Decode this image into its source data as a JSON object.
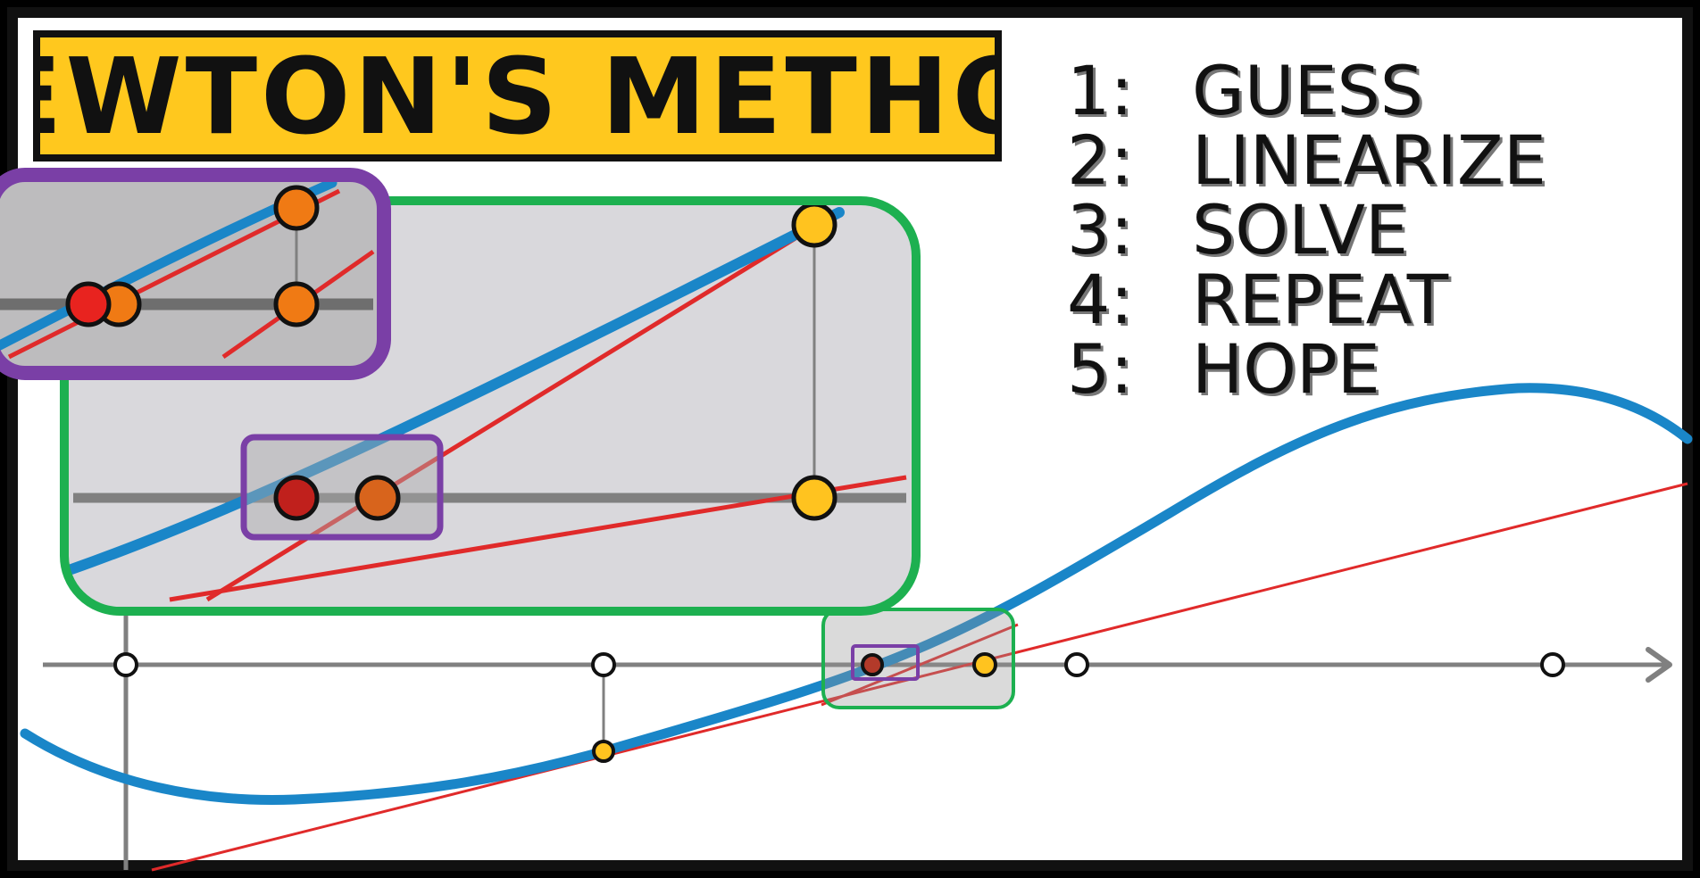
{
  "title": "NEWTON'S METHOD",
  "steps": [
    {
      "num": "1:",
      "text": "GUESS"
    },
    {
      "num": "2:",
      "text": "LINEARIZE"
    },
    {
      "num": "3:",
      "text": "SOLVE"
    },
    {
      "num": "4:",
      "text": "REPEAT"
    },
    {
      "num": "5:",
      "text": "HOPE"
    }
  ],
  "colors": {
    "title_bg": "#ffc81e",
    "curve": "#1a86c8",
    "tangent": "#e02a2a",
    "axis": "#808080",
    "panel_bg": "#d9d8dc",
    "zoom_box_green": "#1db050",
    "zoom_box_purple": "#7a3fa6",
    "guess_yellow": "#ffc31f",
    "iterate_orange": "#f07a14",
    "root_red": "#e8231f"
  },
  "icons": [
    "axis-arrow-icon"
  ]
}
